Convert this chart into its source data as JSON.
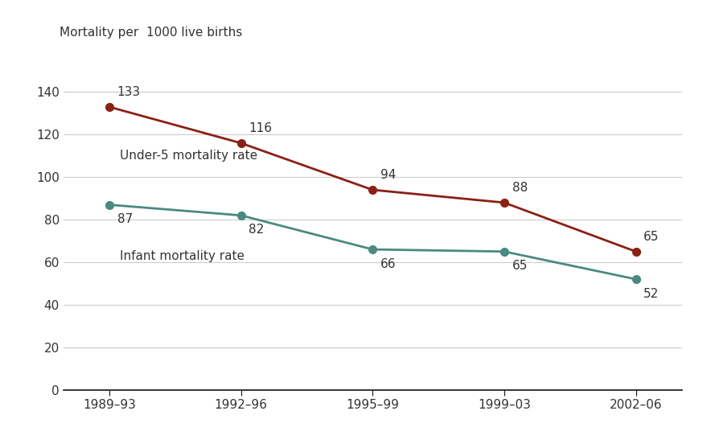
{
  "x_labels": [
    "1989–93",
    "1992–96",
    "1995–99",
    "1999–03",
    "2002–06"
  ],
  "under5_values": [
    133,
    116,
    94,
    88,
    65
  ],
  "infant_values": [
    87,
    82,
    66,
    65,
    52
  ],
  "under5_color": "#8B2015",
  "infant_color": "#4A8A80",
  "under5_label": "Under-5 mortality rate",
  "infant_label": "Infant mortality rate",
  "ylabel": "Mortality per  1000 live births",
  "ylim": [
    0,
    158
  ],
  "yticks": [
    0,
    20,
    40,
    60,
    80,
    100,
    120,
    140
  ],
  "background_color": "#ffffff",
  "grid_color": "#cccccc",
  "marker_size": 7,
  "line_width": 2.0,
  "text_color": "#333333",
  "spine_color": "#111111"
}
